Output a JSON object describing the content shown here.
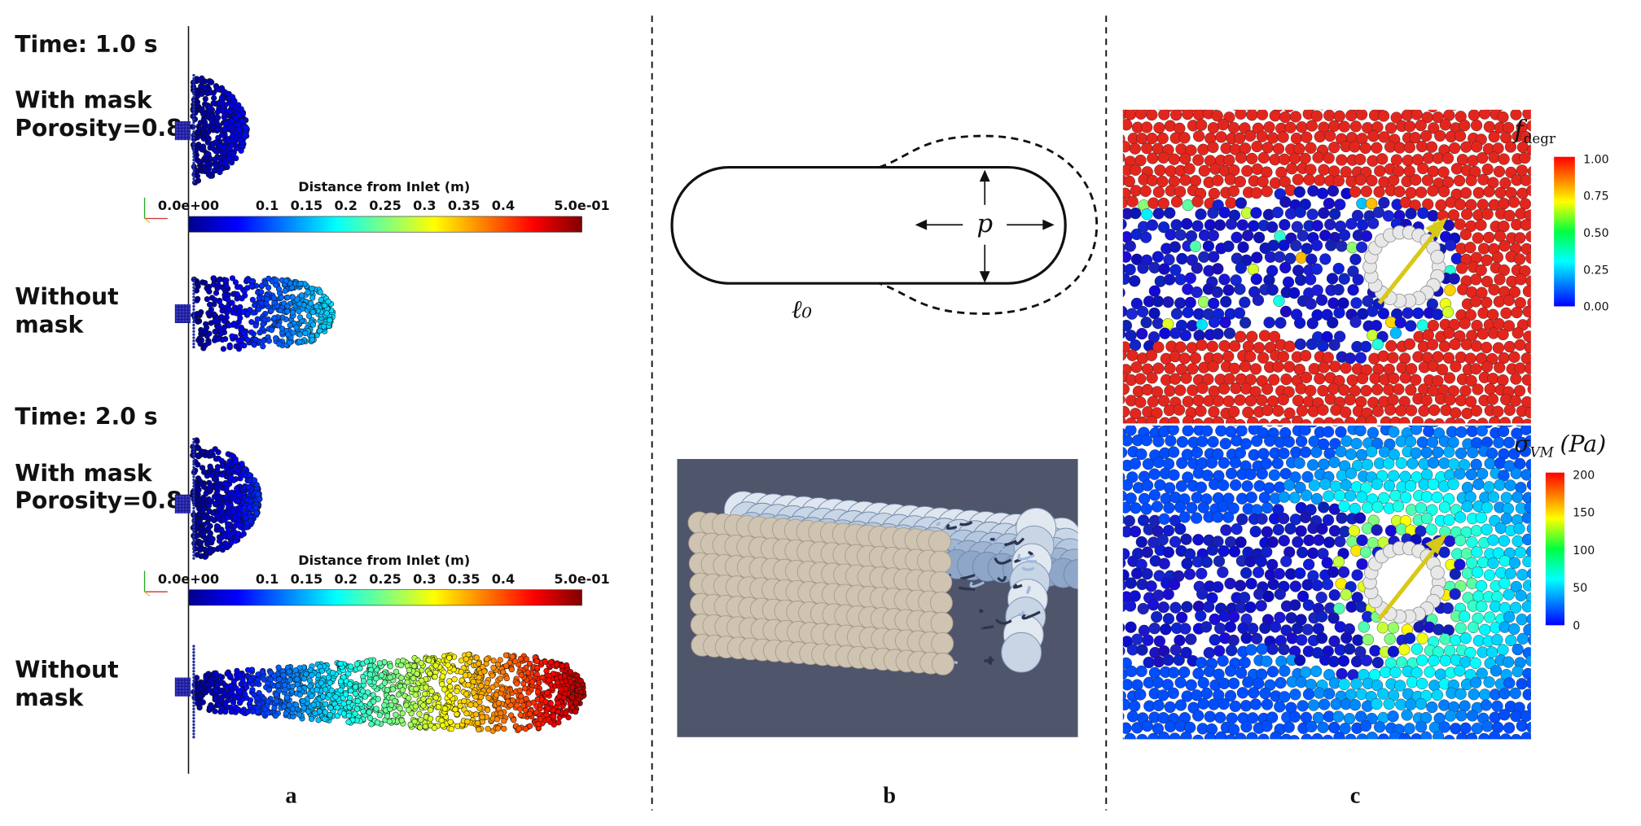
{
  "panel_a": {
    "label": "a",
    "groups": [
      {
        "time": "Time: 1.0 s",
        "with_mask": [
          "With mask",
          "Porosity=0.8"
        ],
        "without_mask": [
          "Without",
          "mask"
        ],
        "colorbar": {
          "title": "Distance from Inlet (m)",
          "ticks": [
            "0.0e+00",
            "0.1",
            "0.15",
            "0.2",
            "0.25",
            "0.3",
            "0.35",
            "0.4",
            "5.0e-01"
          ]
        }
      },
      {
        "time": "Time: 2.0 s",
        "with_mask": [
          "With mask",
          "Porosity=0.8"
        ],
        "without_mask": [
          "Without",
          "mask"
        ],
        "colorbar": {
          "title": "Distance from Inlet (m)",
          "ticks": [
            "0.0e+00",
            "0.1",
            "0.15",
            "0.2",
            "0.25",
            "0.3",
            "0.35",
            "0.4",
            "5.0e-01"
          ]
        }
      }
    ]
  },
  "panel_b": {
    "label": "b",
    "p": "p",
    "l0": "ℓ₀"
  },
  "panel_c": {
    "label": "c",
    "colorbars": [
      {
        "symbol": "f",
        "subscript": "degr",
        "ticks": [
          "1.00",
          "0.75",
          "0.50",
          "0.25",
          "0.00"
        ]
      },
      {
        "symbol": "σ",
        "subscript": "VM",
        "unit": "(Pa)",
        "ticks": [
          "200",
          "150",
          "100",
          "50",
          "0"
        ]
      }
    ]
  }
}
